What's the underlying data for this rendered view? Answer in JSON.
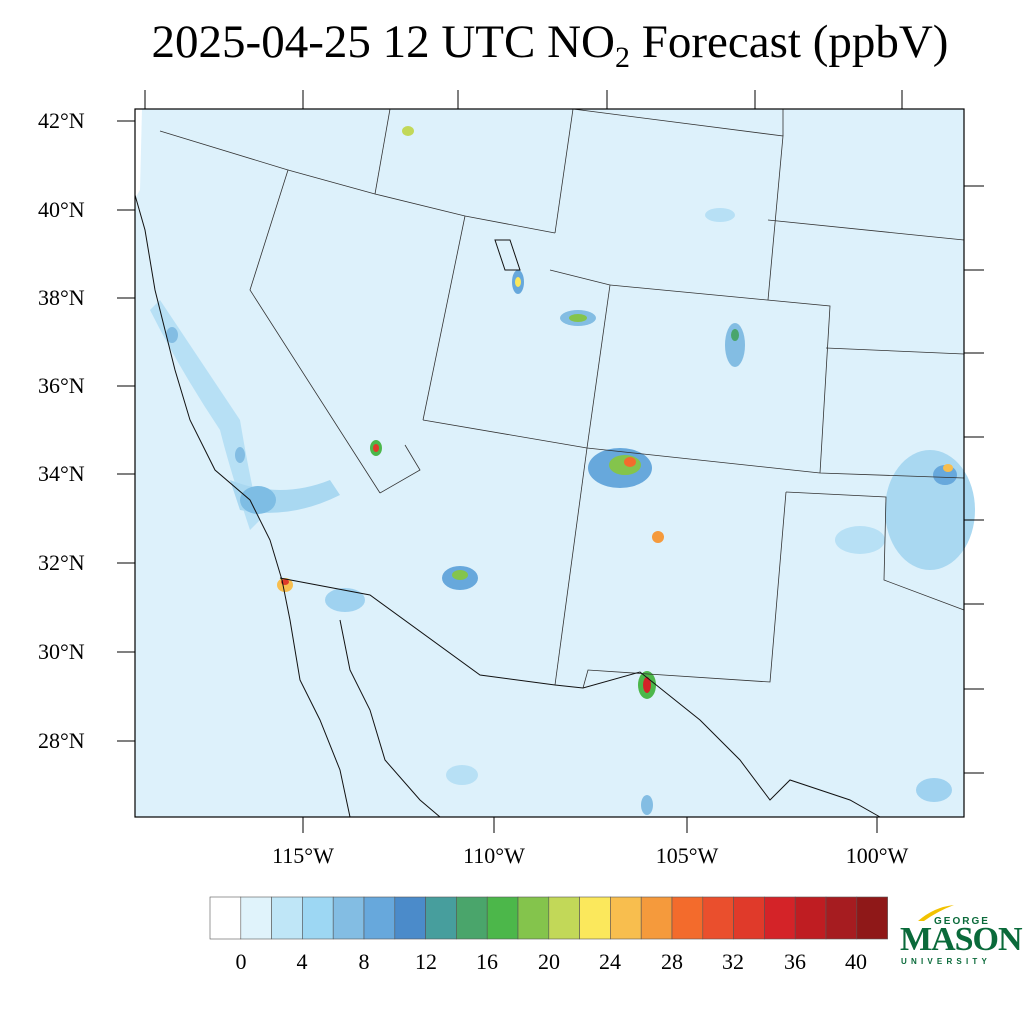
{
  "title": {
    "main": "2025-04-25 12 UTC NO",
    "subscript": "2",
    "suffix": " Forecast (ppbV)"
  },
  "map": {
    "lat_labels": [
      "42°N",
      "40°N",
      "38°N",
      "36°N",
      "34°N",
      "32°N",
      "30°N",
      "28°N"
    ],
    "lon_labels": [
      "115°W",
      "110°W",
      "105°W",
      "100°W"
    ]
  },
  "colorbar": {
    "labels": [
      "0",
      "4",
      "8",
      "12",
      "16",
      "20",
      "24",
      "28",
      "32",
      "36",
      "40"
    ],
    "colors": [
      "#ffffff",
      "#e0f3fb",
      "#bfe6f7",
      "#9dd7f3",
      "#83bde3",
      "#67a8dc",
      "#4b8bca",
      "#479e9d",
      "#4aa56b",
      "#4cb74a",
      "#84c44c",
      "#c2d858",
      "#fbe85c",
      "#f8be4e",
      "#f59a3c",
      "#f36b2c",
      "#ea4f2d",
      "#e03a2a",
      "#d42328",
      "#bf1d22",
      "#a61c20",
      "#8f1818"
    ]
  },
  "logo": {
    "line1": "GEORGE",
    "line2": "MASON",
    "line3": "UNIVERSITY",
    "color": "#0a6a3a",
    "accent": "#f2c200"
  }
}
